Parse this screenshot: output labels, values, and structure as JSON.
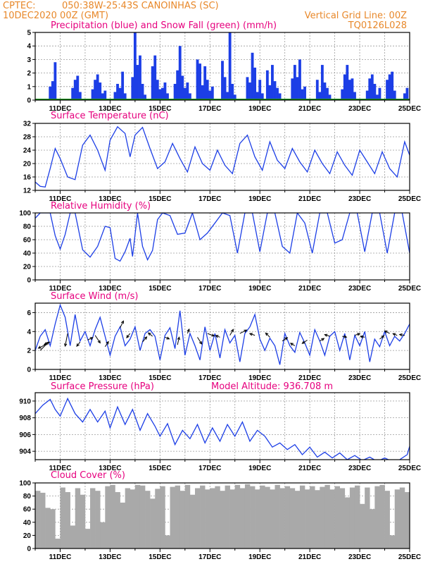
{
  "header": {
    "source": "CPTEC:",
    "location": "050:38W-25:43S   CANOINHAS (SC)",
    "run": "10DEC2020 00Z (GMT)",
    "grid_note": "Vertical Grid Line: 00Z",
    "model_code": "TQ0126L028"
  },
  "colors": {
    "series": "#1c3ee6",
    "snow": "#1a8f1a",
    "cloud": "#a9a9a9",
    "header": "#e8882a",
    "title": "#e6007e"
  },
  "x_axis": {
    "start_day": 10,
    "end_day": 25,
    "labels": [
      "11DEC",
      "13DEC",
      "15DEC",
      "17DEC",
      "19DEC",
      "21DEC",
      "23DEC",
      "25DEC"
    ],
    "label_days": [
      11,
      13,
      15,
      17,
      19,
      21,
      23,
      25
    ]
  },
  "chart_data": [
    {
      "id": "precip",
      "type": "bar",
      "title": "Precipitation (blue) and Snow Fall (green) (mm/h)",
      "ylim": [
        0,
        5
      ],
      "yticks": [
        "0",
        "1",
        "2",
        "3",
        "4",
        "5"
      ],
      "ytick_values": [
        0,
        1,
        2,
        3,
        4,
        5
      ],
      "x": [
        10.6,
        10.7,
        10.8,
        11.5,
        11.6,
        11.7,
        11.8,
        12.3,
        12.4,
        12.5,
        12.6,
        12.7,
        12.8,
        13.2,
        13.3,
        13.4,
        13.5,
        13.6,
        13.9,
        14.0,
        14.1,
        14.2,
        14.3,
        14.4,
        14.7,
        14.8,
        14.9,
        15.0,
        15.1,
        15.2,
        15.3,
        15.6,
        15.7,
        15.8,
        15.9,
        16.0,
        16.1,
        16.2,
        16.5,
        16.6,
        16.7,
        16.8,
        16.9,
        17.0,
        17.1,
        17.5,
        17.6,
        17.7,
        17.8,
        17.9,
        18.0,
        18.5,
        18.6,
        18.7,
        18.8,
        18.9,
        19.0,
        19.1,
        19.3,
        19.4,
        19.5,
        19.6,
        19.7,
        19.8,
        20.3,
        20.4,
        20.5,
        20.6,
        20.7,
        20.8,
        21.3,
        21.4,
        21.5,
        21.6,
        21.7,
        21.8,
        22.3,
        22.4,
        22.5,
        22.6,
        22.7,
        22.8,
        23.3,
        23.4,
        23.5,
        23.6,
        23.7,
        23.8,
        24.1,
        24.2,
        24.3,
        24.4,
        24.8,
        24.9
      ],
      "values": [
        1.0,
        1.4,
        2.8,
        0.9,
        1.5,
        1.8,
        0.6,
        0.8,
        1.5,
        1.9,
        1.3,
        0.5,
        0.7,
        0.6,
        1.2,
        0.9,
        2.1,
        0.5,
        1.7,
        5.0,
        2.6,
        3.3,
        1.2,
        0.4,
        2.5,
        3.3,
        1.5,
        0.8,
        0.9,
        1.3,
        0.5,
        1.2,
        2.2,
        4.0,
        1.8,
        0.9,
        1.3,
        0.5,
        3.0,
        2.7,
        1.1,
        2.5,
        1.5,
        0.7,
        1.0,
        2.9,
        1.7,
        0.6,
        5.0,
        1.2,
        0.4,
        1.7,
        1.3,
        3.5,
        2.4,
        0.6,
        1.5,
        0.5,
        2.2,
        1.1,
        2.6,
        1.4,
        0.9,
        0.5,
        1.6,
        2.6,
        1.7,
        3.0,
        0.8,
        1.0,
        1.5,
        0.6,
        2.6,
        1.3,
        0.9,
        0.4,
        0.8,
        1.9,
        2.6,
        1.5,
        1.6,
        0.6,
        0.7,
        1.6,
        1.9,
        1.2,
        0.4,
        0.9,
        1.5,
        1.9,
        2.1,
        0.7,
        0.5,
        0.9
      ],
      "snow_values": [
        0
      ]
    },
    {
      "id": "temperature",
      "type": "line",
      "title": "Surface Temperature (nC)",
      "ylim": [
        12,
        32
      ],
      "yticks": [
        "12",
        "16",
        "20",
        "24",
        "28",
        "32"
      ],
      "ytick_values": [
        12,
        16,
        20,
        24,
        28,
        32
      ],
      "x": [
        10.0,
        10.2,
        10.4,
        10.6,
        10.8,
        11.0,
        11.3,
        11.6,
        11.9,
        12.2,
        12.5,
        12.8,
        13.0,
        13.3,
        13.6,
        13.8,
        14.0,
        14.3,
        14.6,
        14.9,
        15.2,
        15.5,
        15.8,
        16.1,
        16.4,
        16.7,
        17.0,
        17.3,
        17.6,
        17.9,
        18.2,
        18.5,
        18.8,
        19.1,
        19.4,
        19.7,
        20.0,
        20.3,
        20.6,
        20.9,
        21.2,
        21.5,
        21.8,
        22.1,
        22.4,
        22.7,
        23.0,
        23.3,
        23.6,
        23.9,
        24.2,
        24.5,
        24.8,
        25.0
      ],
      "values": [
        14.5,
        13.2,
        13.0,
        18.5,
        24.5,
        21.5,
        16.0,
        15.2,
        25.5,
        28.5,
        24.0,
        18.0,
        27.0,
        31.0,
        29.0,
        22.0,
        28.5,
        30.8,
        24.5,
        18.5,
        20.5,
        26.0,
        21.5,
        17.5,
        25.0,
        20.0,
        18.0,
        24.0,
        19.5,
        17.0,
        26.0,
        28.5,
        22.0,
        18.0,
        26.5,
        21.0,
        18.5,
        24.5,
        20.5,
        17.5,
        24.0,
        20.0,
        17.0,
        23.5,
        19.5,
        16.5,
        24.0,
        20.5,
        17.0,
        23.5,
        18.5,
        16.0,
        26.5,
        22.5
      ]
    },
    {
      "id": "humidity",
      "type": "line",
      "title": "Relative Humidity (%)",
      "ylim": [
        0,
        100
      ],
      "yticks": [
        "0",
        "20",
        "40",
        "60",
        "80",
        "100"
      ],
      "ytick_values": [
        0,
        20,
        40,
        60,
        80,
        100
      ],
      "x": [
        10.0,
        10.2,
        10.4,
        10.6,
        10.8,
        11.0,
        11.2,
        11.4,
        11.6,
        11.9,
        12.2,
        12.5,
        12.8,
        13.0,
        13.2,
        13.4,
        13.6,
        13.8,
        13.9,
        14.1,
        14.3,
        14.5,
        14.7,
        14.9,
        15.1,
        15.4,
        15.7,
        16.0,
        16.3,
        16.6,
        16.9,
        17.2,
        17.5,
        17.8,
        18.1,
        18.4,
        18.7,
        19.0,
        19.3,
        19.6,
        19.9,
        20.2,
        20.5,
        20.8,
        21.1,
        21.4,
        21.7,
        22.0,
        22.3,
        22.6,
        22.9,
        23.2,
        23.5,
        23.8,
        24.1,
        24.4,
        24.7,
        25.0
      ],
      "values": [
        92,
        100,
        100,
        100,
        66,
        46,
        68,
        100,
        100,
        45,
        34,
        50,
        80,
        78,
        32,
        28,
        42,
        62,
        35,
        100,
        50,
        30,
        44,
        90,
        100,
        96,
        68,
        70,
        100,
        60,
        70,
        85,
        100,
        96,
        40,
        100,
        100,
        42,
        100,
        100,
        50,
        40,
        100,
        85,
        40,
        100,
        100,
        55,
        60,
        100,
        100,
        42,
        100,
        100,
        40,
        100,
        100,
        40
      ]
    },
    {
      "id": "wind",
      "type": "line",
      "title": "Surface Wind (m/s)",
      "ylim": [
        0,
        7
      ],
      "yticks": [
        "0",
        "2",
        "4",
        "6"
      ],
      "ytick_values": [
        0,
        2,
        4,
        6
      ],
      "x": [
        10.0,
        10.2,
        10.4,
        10.6,
        10.8,
        11.0,
        11.2,
        11.4,
        11.6,
        11.8,
        12.0,
        12.2,
        12.4,
        12.6,
        12.8,
        13.0,
        13.2,
        13.4,
        13.6,
        13.8,
        14.0,
        14.2,
        14.4,
        14.6,
        14.8,
        15.0,
        15.2,
        15.4,
        15.6,
        15.8,
        16.0,
        16.2,
        16.4,
        16.6,
        16.8,
        17.0,
        17.2,
        17.4,
        17.6,
        17.8,
        18.0,
        18.2,
        18.4,
        18.6,
        18.8,
        19.0,
        19.2,
        19.4,
        19.6,
        19.8,
        20.0,
        20.2,
        20.4,
        20.6,
        20.8,
        21.0,
        21.2,
        21.4,
        21.6,
        21.8,
        22.0,
        22.2,
        22.4,
        22.6,
        22.8,
        23.0,
        23.2,
        23.4,
        23.6,
        23.8,
        24.0,
        24.2,
        24.4,
        24.6,
        24.8,
        25.0
      ],
      "values": [
        2.0,
        3.5,
        4.2,
        2.5,
        4.8,
        6.8,
        5.5,
        2.5,
        5.8,
        3.0,
        4.0,
        2.5,
        4.2,
        5.5,
        3.5,
        1.5,
        3.5,
        4.5,
        2.5,
        3.2,
        4.5,
        2.0,
        3.8,
        4.2,
        3.5,
        1.0,
        3.6,
        4.4,
        2.2,
        6.2,
        1.5,
        3.8,
        2.5,
        1.0,
        4.5,
        2.0,
        3.8,
        1.2,
        4.2,
        2.8,
        3.6,
        0.8,
        3.8,
        4.5,
        5.8,
        3.2,
        2.0,
        3.3,
        2.5,
        0.5,
        3.8,
        2.5,
        1.8,
        3.9,
        2.8,
        1.5,
        4.2,
        3.0,
        1.5,
        3.5,
        4.0,
        2.0,
        3.8,
        1.0,
        3.6,
        2.5,
        4.0,
        0.8,
        3.2,
        2.4,
        4.0,
        2.5,
        3.5,
        3.0,
        3.8,
        4.8
      ],
      "arrows": [
        {
          "x": 10.2,
          "y": 2.0,
          "u": 1.0,
          "v": 1.0
        },
        {
          "x": 10.4,
          "y": 2.6,
          "u": -0.8,
          "v": -0.4
        },
        {
          "x": 10.6,
          "y": 2.9,
          "u": -0.7,
          "v": -0.3
        },
        {
          "x": 11.3,
          "y": 3.8,
          "u": -0.3,
          "v": -1.5
        },
        {
          "x": 11.8,
          "y": 2.9,
          "u": -0.4,
          "v": -0.5
        },
        {
          "x": 12.1,
          "y": 3.1,
          "u": 0.6,
          "v": 0.3
        },
        {
          "x": 12.4,
          "y": 3.6,
          "u": 0.6,
          "v": -0.9
        },
        {
          "x": 12.8,
          "y": 2.4,
          "u": 0.4,
          "v": 0.6
        },
        {
          "x": 13.4,
          "y": 4.4,
          "u": 0.4,
          "v": 0.8
        },
        {
          "x": 13.8,
          "y": 3.8,
          "u": -0.4,
          "v": -0.5
        },
        {
          "x": 14.3,
          "y": 2.9,
          "u": 0.5,
          "v": 0.6
        },
        {
          "x": 14.7,
          "y": 3.5,
          "u": -0.5,
          "v": 0.4
        },
        {
          "x": 15.2,
          "y": 3.4,
          "u": 0.5,
          "v": -0.2
        },
        {
          "x": 15.7,
          "y": 2.6,
          "u": 0.2,
          "v": 0.9
        },
        {
          "x": 16.1,
          "y": 3.8,
          "u": 0.2,
          "v": 0.5
        },
        {
          "x": 16.5,
          "y": 3.4,
          "u": 0.5,
          "v": -0.8
        },
        {
          "x": 16.9,
          "y": 3.8,
          "u": 0.8,
          "v": -0.3
        },
        {
          "x": 17.4,
          "y": 3.4,
          "u": -0.5,
          "v": 0.2
        },
        {
          "x": 17.8,
          "y": 3.6,
          "u": 0.4,
          "v": 0.7
        },
        {
          "x": 18.2,
          "y": 3.8,
          "u": 0.8,
          "v": 0.4
        },
        {
          "x": 18.8,
          "y": 3.6,
          "u": -0.6,
          "v": 0.2
        },
        {
          "x": 19.4,
          "y": 3.4,
          "u": -0.5,
          "v": 0.5
        },
        {
          "x": 19.9,
          "y": 3.0,
          "u": 0.6,
          "v": 0.4
        },
        {
          "x": 20.4,
          "y": 2.5,
          "u": -0.5,
          "v": 0.3
        },
        {
          "x": 20.9,
          "y": 3.1,
          "u": -0.6,
          "v": -0.4
        },
        {
          "x": 21.4,
          "y": 3.0,
          "u": 0.5,
          "v": 0.3
        },
        {
          "x": 21.8,
          "y": 3.5,
          "u": -0.6,
          "v": 0.2
        },
        {
          "x": 22.3,
          "y": 3.5,
          "u": 0.5,
          "v": -0.1
        },
        {
          "x": 22.8,
          "y": 3.6,
          "u": 0.6,
          "v": 0.2
        },
        {
          "x": 23.2,
          "y": 3.4,
          "u": -0.5,
          "v": 0.1
        },
        {
          "x": 23.8,
          "y": 3.2,
          "u": 0.5,
          "v": 0.4
        },
        {
          "x": 24.2,
          "y": 3.8,
          "u": -0.6,
          "v": 0.3
        },
        {
          "x": 24.5,
          "y": 3.6,
          "u": -0.5,
          "v": 0.2
        },
        {
          "x": 24.8,
          "y": 3.6,
          "u": -0.6,
          "v": 0.1
        }
      ]
    },
    {
      "id": "pressure",
      "type": "line",
      "title": "Surface Pressure (hPa)",
      "annotation": "Model Altitude: 936.708 m",
      "ylim": [
        903,
        911
      ],
      "yticks": [
        "904",
        "906",
        "908",
        "910"
      ],
      "ytick_values": [
        904,
        906,
        908,
        910
      ],
      "x": [
        10.0,
        10.3,
        10.6,
        10.8,
        11.0,
        11.3,
        11.6,
        11.9,
        12.2,
        12.5,
        12.8,
        13.0,
        13.3,
        13.6,
        13.9,
        14.2,
        14.5,
        14.8,
        15.0,
        15.3,
        15.6,
        15.9,
        16.2,
        16.5,
        16.8,
        17.1,
        17.4,
        17.7,
        18.0,
        18.3,
        18.6,
        18.9,
        19.2,
        19.5,
        19.8,
        20.1,
        20.4,
        20.7,
        21.0,
        21.3,
        21.6,
        21.9,
        22.2,
        22.5,
        22.8,
        23.1,
        23.4,
        23.7,
        24.0,
        24.3,
        24.6,
        24.9,
        25.0
      ],
      "values": [
        908.5,
        909.5,
        910.2,
        909.0,
        908.2,
        910.3,
        908.5,
        907.5,
        909.0,
        907.5,
        908.8,
        906.8,
        909.3,
        907.2,
        909.0,
        906.5,
        908.5,
        907.0,
        905.8,
        907.3,
        904.8,
        906.5,
        905.5,
        907.2,
        905.0,
        906.8,
        905.2,
        907.2,
        905.8,
        907.5,
        905.2,
        906.5,
        905.8,
        904.5,
        905.0,
        904.2,
        904.8,
        903.6,
        904.5,
        903.3,
        903.9,
        903.2,
        903.8,
        903.0,
        903.5,
        902.9,
        903.3,
        902.8,
        903.2,
        902.8,
        903.0,
        903.6,
        904.6
      ]
    },
    {
      "id": "cloud",
      "type": "bar",
      "title": "Cloud Cover (%)",
      "ylim": [
        0,
        100
      ],
      "yticks": [
        "0",
        "20",
        "40",
        "60",
        "80",
        "100"
      ],
      "ytick_values": [
        0,
        20,
        40,
        60,
        80,
        100
      ],
      "x": [
        10.0,
        10.2,
        10.4,
        10.6,
        10.8,
        11.0,
        11.2,
        11.4,
        11.6,
        11.8,
        12.0,
        12.2,
        12.4,
        12.6,
        12.8,
        13.0,
        13.2,
        13.4,
        13.6,
        13.8,
        14.0,
        14.2,
        14.4,
        14.6,
        14.8,
        15.0,
        15.2,
        15.4,
        15.6,
        15.8,
        16.0,
        16.2,
        16.4,
        16.6,
        16.8,
        17.0,
        17.2,
        17.4,
        17.6,
        17.8,
        18.0,
        18.2,
        18.4,
        18.6,
        18.8,
        19.0,
        19.2,
        19.4,
        19.6,
        19.8,
        20.0,
        20.2,
        20.4,
        20.6,
        20.8,
        21.0,
        21.2,
        21.4,
        21.6,
        21.8,
        22.0,
        22.2,
        22.4,
        22.6,
        22.8,
        23.0,
        23.2,
        23.4,
        23.6,
        23.8,
        24.0,
        24.2,
        24.4,
        24.6,
        24.8
      ],
      "values": [
        88,
        85,
        62,
        60,
        15,
        93,
        86,
        35,
        92,
        82,
        30,
        92,
        88,
        40,
        95,
        97,
        86,
        70,
        92,
        90,
        97,
        96,
        88,
        76,
        91,
        95,
        20,
        94,
        96,
        88,
        97,
        82,
        92,
        96,
        90,
        92,
        95,
        88,
        96,
        90,
        97,
        92,
        98,
        95,
        90,
        96,
        94,
        90,
        97,
        92,
        95,
        92,
        88,
        96,
        90,
        95,
        89,
        94,
        97,
        90,
        95,
        92,
        78,
        93,
        96,
        68,
        93,
        60,
        95,
        97,
        88,
        20,
        90,
        93,
        86
      ]
    }
  ]
}
